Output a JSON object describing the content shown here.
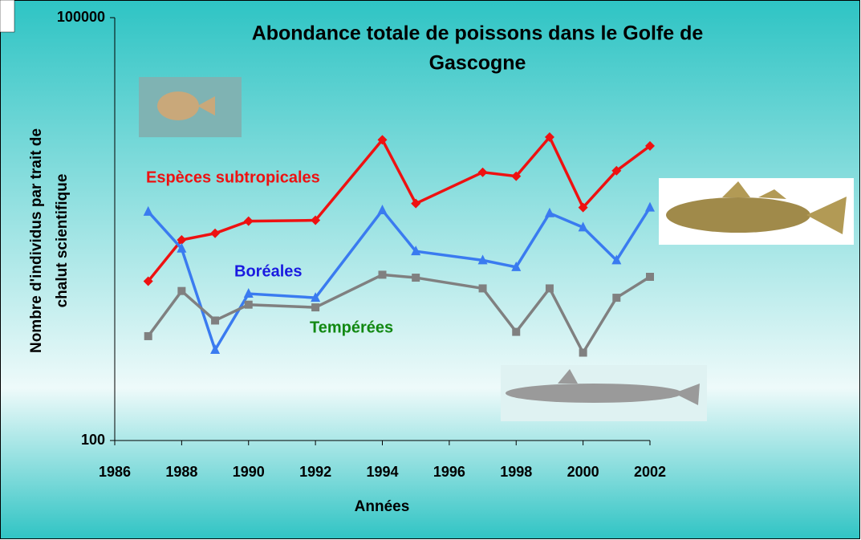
{
  "chart_data": {
    "type": "line",
    "title": [
      "Abondance totale de poissons dans le Golfe de",
      "Gascogne"
    ],
    "x_label": "Années",
    "y_label": [
      "Nombre d'individus par trait de",
      "chalut scientifique"
    ],
    "x": [
      1987,
      1988,
      1989,
      1990,
      1992,
      1994,
      1995,
      1997,
      1998,
      1999,
      2000,
      2001,
      2002
    ],
    "xlim": [
      1986,
      2002
    ],
    "xticks": [
      1986,
      1988,
      1990,
      1992,
      1994,
      1996,
      1998,
      2000,
      2002
    ],
    "ylim": [
      100,
      100000
    ],
    "yticks": [
      100,
      100000
    ],
    "log_y": true,
    "grid": false,
    "series": [
      {
        "name": "Espèces subtropicales",
        "color": "#ee1111",
        "label_color": "#ee1111",
        "marker": "diamond",
        "values": [
          1350,
          2650,
          2950,
          3600,
          3650,
          13600,
          4800,
          8000,
          7500,
          14200,
          4500,
          8200,
          12300
        ]
      },
      {
        "name": "Boréales",
        "color": "#3a7bf0",
        "label_color": "#1a1ae0",
        "marker": "triangle",
        "values": [
          4200,
          2300,
          440,
          1100,
          1030,
          4300,
          2200,
          1900,
          1700,
          4100,
          3250,
          1900,
          4500
        ]
      },
      {
        "name": "Tempérées",
        "color": "#808080",
        "label_color": "#118811",
        "marker": "square",
        "values": [
          550,
          1150,
          710,
          920,
          880,
          1500,
          1430,
          1200,
          590,
          1200,
          420,
          1030,
          1450
        ]
      }
    ]
  }
}
